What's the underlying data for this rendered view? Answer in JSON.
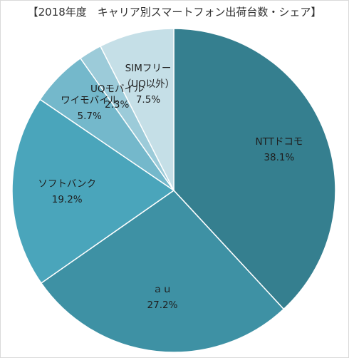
{
  "chart_data": {
    "type": "pie",
    "title": "【2018年度　キャリア別スマートフォン出荷台数・シェア】",
    "start_angle_deg": 0,
    "direction": "clockwise",
    "slices": [
      {
        "name": "NTTドコモ",
        "value": 38.1,
        "label_lines": [
          "NTTドコモ",
          "38.1%"
        ],
        "color": "#357f8f"
      },
      {
        "name": "ａｕ",
        "value": 27.2,
        "label_lines": [
          "ａｕ",
          "27.2%"
        ],
        "color": "#3e91a4"
      },
      {
        "name": "ソフトバンク",
        "value": 19.2,
        "label_lines": [
          "ソフトバンク",
          "19.2%"
        ],
        "color": "#4aa5bb"
      },
      {
        "name": "ワイモバイル",
        "value": 5.7,
        "label_lines": [
          "ワイモバイル",
          "5.7%"
        ],
        "color": "#74b8cb"
      },
      {
        "name": "UQモバイル",
        "value": 2.3,
        "label_lines": [
          "UQモバイル",
          "2.3%"
        ],
        "color": "#9ccbd9"
      },
      {
        "name": "SIMフリー（UQ以外）",
        "value": 7.5,
        "label_lines": [
          "SIMフリー",
          "（UQ以外）",
          "7.5%"
        ],
        "color": "#c5dfe7"
      }
    ]
  }
}
